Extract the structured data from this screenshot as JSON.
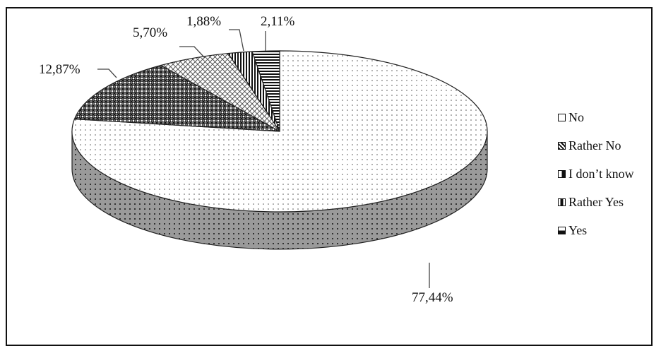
{
  "chart_data": {
    "type": "pie",
    "title": "",
    "categories": [
      "No",
      "Rather No",
      "I don’t know",
      "Rather Yes",
      "Yes"
    ],
    "values": [
      77.44,
      12.87,
      5.7,
      1.88,
      2.11
    ],
    "data_labels": [
      "77,44%",
      "12,87%",
      "5,70%",
      "1,88%",
      "2,11%"
    ],
    "legend_position": "right",
    "style": "3d-pie-monochrome-patterns"
  },
  "legend": {
    "items": [
      {
        "label": "No",
        "pattern": "dots"
      },
      {
        "label": "Rather No",
        "pattern": "dense-crosshatch"
      },
      {
        "label": "I don’t know",
        "pattern": "crosshatch"
      },
      {
        "label": "Rather Yes",
        "pattern": "vertical-stripes"
      },
      {
        "label": "Yes",
        "pattern": "horizontal-stripes"
      }
    ]
  }
}
